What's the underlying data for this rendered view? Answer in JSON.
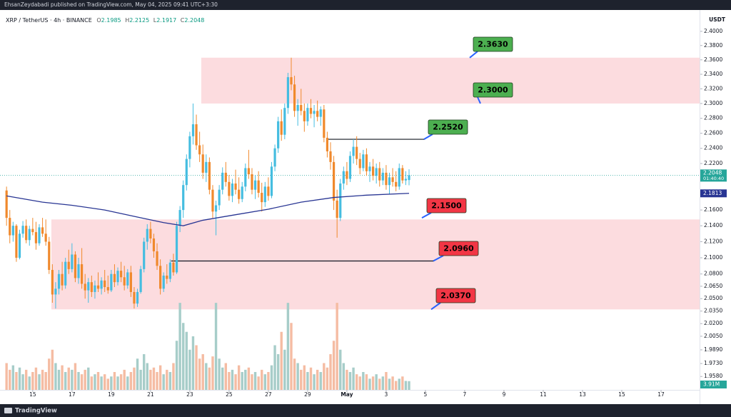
{
  "chart_data": {
    "type": "candlestick",
    "published": "EhsanZeydabadi published on TradingView.com, May 04, 2025 09:41 UTC+3:30",
    "symbol": "XRP / TetherUS · 4h · BINANCE",
    "ohlc_letters": [
      "O",
      "H",
      "L",
      "C"
    ],
    "currency": "USDT",
    "countdown": "01:40:40",
    "brand": "TradingView",
    "up_color": "#45bde0",
    "down_color": "#f0892c",
    "vol_up_color": "#a7cdc9",
    "vol_down_color": "#f5bca3",
    "ma_color": "#283593",
    "log_scale": true,
    "grid": false,
    "ylim": [
      1.9426,
      2.4304
    ],
    "yticks": [
      {
        "value": 2.4,
        "label": "2.4000"
      },
      {
        "value": 2.38,
        "label": "2.3800"
      },
      {
        "value": 2.36,
        "label": "2.3600"
      },
      {
        "value": 2.34,
        "label": "2.3400"
      },
      {
        "value": 2.32,
        "label": "2.3200"
      },
      {
        "value": 2.3,
        "label": "2.3000"
      },
      {
        "value": 2.28,
        "label": "2.2800"
      },
      {
        "value": 2.26,
        "label": "2.2600"
      },
      {
        "value": 2.24,
        "label": "2.2400"
      },
      {
        "value": 2.22,
        "label": "2.2200"
      },
      {
        "value": 2.16,
        "label": "2.1600"
      },
      {
        "value": 2.14,
        "label": "2.1400"
      },
      {
        "value": 2.12,
        "label": "2.1200"
      },
      {
        "value": 2.1,
        "label": "2.1000"
      },
      {
        "value": 2.08,
        "label": "2.0800"
      },
      {
        "value": 2.065,
        "label": "2.0650"
      },
      {
        "value": 2.05,
        "label": "2.0500"
      },
      {
        "value": 2.035,
        "label": "2.0350"
      },
      {
        "value": 2.02,
        "label": "2.0200"
      },
      {
        "value": 2.005,
        "label": "2.0050"
      },
      {
        "value": 1.989,
        "label": "1.9890"
      },
      {
        "value": 1.973,
        "label": "1.9730"
      },
      {
        "value": 1.958,
        "label": "1.9580"
      }
    ],
    "xlim": [
      -2,
      212
    ],
    "xticks": [
      {
        "value": 8,
        "label": "15"
      },
      {
        "value": 20,
        "label": "17"
      },
      {
        "value": 32,
        "label": "19"
      },
      {
        "value": 44,
        "label": "21"
      },
      {
        "value": 56,
        "label": "23"
      },
      {
        "value": 68,
        "label": "25"
      },
      {
        "value": 80,
        "label": "27"
      },
      {
        "value": 92,
        "label": "29"
      },
      {
        "value": 104,
        "label": "May"
      },
      {
        "value": 116,
        "label": "3"
      },
      {
        "value": 128,
        "label": "5"
      },
      {
        "value": 140,
        "label": "7"
      },
      {
        "value": 152,
        "label": "9"
      },
      {
        "value": 164,
        "label": "11"
      },
      {
        "value": 176,
        "label": "13"
      },
      {
        "value": 188,
        "label": "15"
      },
      {
        "value": 200,
        "label": "17"
      }
    ],
    "ohlc": [
      [
        2.185,
        2.19,
        2.14,
        2.15
      ],
      [
        2.15,
        2.16,
        2.118,
        2.128
      ],
      [
        2.128,
        2.145,
        2.12,
        2.14
      ],
      [
        2.14,
        2.142,
        2.095,
        2.1
      ],
      [
        2.1,
        2.135,
        2.098,
        2.13
      ],
      [
        2.13,
        2.146,
        2.125,
        2.14
      ],
      [
        2.14,
        2.148,
        2.118,
        2.122
      ],
      [
        2.122,
        2.14,
        2.115,
        2.136
      ],
      [
        2.136,
        2.15,
        2.128,
        2.132
      ],
      [
        2.132,
        2.145,
        2.11,
        2.118
      ],
      [
        2.118,
        2.142,
        2.115,
        2.138
      ],
      [
        2.138,
        2.15,
        2.126,
        2.13
      ],
      [
        2.13,
        2.148,
        2.115,
        2.12
      ],
      [
        2.12,
        2.126,
        2.08,
        2.085
      ],
      [
        2.085,
        2.092,
        2.045,
        2.055
      ],
      [
        2.055,
        2.07,
        2.038,
        2.062
      ],
      [
        2.062,
        2.085,
        2.055,
        2.08
      ],
      [
        2.08,
        2.095,
        2.06,
        2.066
      ],
      [
        2.066,
        2.1,
        2.062,
        2.095
      ],
      [
        2.095,
        2.11,
        2.08,
        2.086
      ],
      [
        2.086,
        2.118,
        2.082,
        2.104
      ],
      [
        2.104,
        2.108,
        2.07,
        2.075
      ],
      [
        2.075,
        2.1,
        2.068,
        2.092
      ],
      [
        2.092,
        2.112,
        2.062,
        2.068
      ],
      [
        2.068,
        2.08,
        2.05,
        2.06
      ],
      [
        2.06,
        2.075,
        2.045,
        2.07
      ],
      [
        2.07,
        2.078,
        2.052,
        2.058
      ],
      [
        2.058,
        2.072,
        2.05,
        2.066
      ],
      [
        2.066,
        2.082,
        2.058,
        2.062
      ],
      [
        2.062,
        2.076,
        2.055,
        2.072
      ],
      [
        2.072,
        2.085,
        2.058,
        2.064
      ],
      [
        2.064,
        2.078,
        2.056,
        2.06
      ],
      [
        2.06,
        2.085,
        2.058,
        2.08
      ],
      [
        2.08,
        2.092,
        2.064,
        2.07
      ],
      [
        2.07,
        2.088,
        2.066,
        2.084
      ],
      [
        2.084,
        2.095,
        2.07,
        2.076
      ],
      [
        2.076,
        2.09,
        2.06,
        2.066
      ],
      [
        2.066,
        2.086,
        2.062,
        2.082
      ],
      [
        2.082,
        2.09,
        2.052,
        2.058
      ],
      [
        2.058,
        2.064,
        2.038,
        2.044
      ],
      [
        2.044,
        2.062,
        2.04,
        2.058
      ],
      [
        2.058,
        2.09,
        2.056,
        2.086
      ],
      [
        2.086,
        2.125,
        2.082,
        2.12
      ],
      [
        2.12,
        2.142,
        2.11,
        2.136
      ],
      [
        2.136,
        2.145,
        2.118,
        2.124
      ],
      [
        2.124,
        2.13,
        2.1,
        2.108
      ],
      [
        2.108,
        2.118,
        2.085,
        2.09
      ],
      [
        2.09,
        2.098,
        2.055,
        2.062
      ],
      [
        2.062,
        2.082,
        2.058,
        2.078
      ],
      [
        2.078,
        2.092,
        2.068,
        2.074
      ],
      [
        2.074,
        2.098,
        2.07,
        2.094
      ],
      [
        2.094,
        2.105,
        2.078,
        2.082
      ],
      [
        2.082,
        2.145,
        2.08,
        2.14
      ],
      [
        2.14,
        2.165,
        2.132,
        2.16
      ],
      [
        2.16,
        2.198,
        2.15,
        2.192
      ],
      [
        2.192,
        2.232,
        2.185,
        2.226
      ],
      [
        2.226,
        2.262,
        2.215,
        2.256
      ],
      [
        2.256,
        2.3,
        2.245,
        2.272
      ],
      [
        2.272,
        2.285,
        2.238,
        2.244
      ],
      [
        2.244,
        2.262,
        2.222,
        2.232
      ],
      [
        2.232,
        2.245,
        2.2,
        2.208
      ],
      [
        2.208,
        2.232,
        2.196,
        2.222
      ],
      [
        2.222,
        2.228,
        2.18,
        2.186
      ],
      [
        2.186,
        2.192,
        2.15,
        2.158
      ],
      [
        2.158,
        2.172,
        2.128,
        2.166
      ],
      [
        2.166,
        2.192,
        2.16,
        2.186
      ],
      [
        2.186,
        2.215,
        2.18,
        2.208
      ],
      [
        2.208,
        2.222,
        2.19,
        2.196
      ],
      [
        2.196,
        2.205,
        2.172,
        2.178
      ],
      [
        2.178,
        2.2,
        2.17,
        2.194
      ],
      [
        2.194,
        2.212,
        2.18,
        2.186
      ],
      [
        2.186,
        2.202,
        2.168,
        2.174
      ],
      [
        2.174,
        2.196,
        2.17,
        2.19
      ],
      [
        2.19,
        2.22,
        2.184,
        2.214
      ],
      [
        2.214,
        2.238,
        2.2,
        2.206
      ],
      [
        2.206,
        2.214,
        2.18,
        2.186
      ],
      [
        2.186,
        2.205,
        2.174,
        2.198
      ],
      [
        2.198,
        2.21,
        2.176,
        2.182
      ],
      [
        2.182,
        2.195,
        2.158,
        2.17
      ],
      [
        2.17,
        2.196,
        2.164,
        2.19
      ],
      [
        2.19,
        2.202,
        2.172,
        2.178
      ],
      [
        2.178,
        2.222,
        2.175,
        2.216
      ],
      [
        2.216,
        2.245,
        2.21,
        2.24
      ],
      [
        2.24,
        2.282,
        2.234,
        2.276
      ],
      [
        2.276,
        2.292,
        2.25,
        2.258
      ],
      [
        2.258,
        2.3,
        2.252,
        2.294
      ],
      [
        2.294,
        2.342,
        2.286,
        2.336
      ],
      [
        2.336,
        2.363,
        2.318,
        2.326
      ],
      [
        2.326,
        2.338,
        2.282,
        2.29
      ],
      [
        2.29,
        2.306,
        2.27,
        2.298
      ],
      [
        2.298,
        2.32,
        2.284,
        2.29
      ],
      [
        2.29,
        2.3,
        2.262,
        2.276
      ],
      [
        2.276,
        2.3,
        2.27,
        2.294
      ],
      [
        2.294,
        2.306,
        2.28,
        2.286
      ],
      [
        2.286,
        2.298,
        2.268,
        2.29
      ],
      [
        2.29,
        2.304,
        2.276,
        2.282
      ],
      [
        2.282,
        2.296,
        2.27,
        2.292
      ],
      [
        2.292,
        2.298,
        2.248,
        2.254
      ],
      [
        2.254,
        2.262,
        2.228,
        2.236
      ],
      [
        2.236,
        2.248,
        2.212,
        2.222
      ],
      [
        2.222,
        2.23,
        2.16,
        2.172
      ],
      [
        2.172,
        2.186,
        2.125,
        2.15
      ],
      [
        2.15,
        2.2,
        2.146,
        2.194
      ],
      [
        2.194,
        2.216,
        2.186,
        2.21
      ],
      [
        2.21,
        2.222,
        2.192,
        2.2
      ],
      [
        2.2,
        2.236,
        2.196,
        2.23
      ],
      [
        2.23,
        2.252,
        2.22,
        2.242
      ],
      [
        2.242,
        2.256,
        2.218,
        2.226
      ],
      [
        2.226,
        2.234,
        2.206,
        2.214
      ],
      [
        2.214,
        2.238,
        2.21,
        2.232
      ],
      [
        2.232,
        2.24,
        2.204,
        2.21
      ],
      [
        2.21,
        2.222,
        2.196,
        2.216
      ],
      [
        2.216,
        2.226,
        2.198,
        2.204
      ],
      [
        2.204,
        2.22,
        2.194,
        2.214
      ],
      [
        2.214,
        2.222,
        2.19,
        2.198
      ],
      [
        2.198,
        2.214,
        2.192,
        2.208
      ],
      [
        2.208,
        2.218,
        2.186,
        2.192
      ],
      [
        2.192,
        2.208,
        2.18,
        2.202
      ],
      [
        2.202,
        2.214,
        2.19,
        2.196
      ],
      [
        2.196,
        2.21,
        2.184,
        2.19
      ],
      [
        2.19,
        2.22,
        2.186,
        2.214
      ],
      [
        2.214,
        2.218,
        2.194,
        2.198
      ],
      [
        2.198,
        2.21,
        2.192,
        2.2
      ],
      [
        2.1985,
        2.2125,
        2.1917,
        2.2048
      ]
    ],
    "volume": {
      "vlim": [
        0,
        48
      ],
      "last_label": "3.91M",
      "values": [
        12,
        9,
        11,
        8,
        10,
        7,
        9,
        6,
        8,
        10,
        7,
        9,
        8,
        14,
        18,
        12,
        9,
        11,
        8,
        10,
        9,
        12,
        8,
        7,
        9,
        10,
        6,
        7,
        8,
        6,
        7,
        5,
        6,
        8,
        6,
        7,
        9,
        6,
        8,
        10,
        14,
        9,
        16,
        12,
        9,
        10,
        8,
        11,
        7,
        9,
        8,
        12,
        22,
        39,
        30,
        26,
        18,
        24,
        20,
        14,
        16,
        12,
        10,
        15,
        39,
        14,
        10,
        12,
        8,
        9,
        7,
        11,
        8,
        9,
        10,
        7,
        8,
        6,
        9,
        7,
        8,
        11,
        20,
        16,
        26,
        18,
        39,
        30,
        14,
        12,
        9,
        11,
        8,
        10,
        7,
        9,
        8,
        12,
        10,
        16,
        22,
        39,
        18,
        12,
        9,
        8,
        10,
        7,
        6,
        8,
        7,
        5,
        6,
        7,
        5,
        6,
        8,
        5,
        6,
        4,
        5,
        6,
        4,
        3.91
      ]
    },
    "ma": {
      "x": [
        0,
        11,
        20,
        30,
        40,
        48,
        54,
        60,
        70,
        80,
        90,
        100,
        110,
        123
      ],
      "values": [
        2.178,
        2.17,
        2.166,
        2.16,
        2.151,
        2.144,
        2.14,
        2.147,
        2.154,
        2.161,
        2.17,
        2.176,
        2.179,
        2.1813
      ]
    },
    "zones": [
      {
        "from": 59.5,
        "low": 2.3,
        "high": 2.363
      },
      {
        "from": 13.7,
        "low": 2.037,
        "high": 2.148
      }
    ],
    "lines": [
      {
        "value": 2.252,
        "from": 98.3,
        "to": 127.8
      },
      {
        "value": 2.096,
        "from": 50.3,
        "to": 130.6
      }
    ],
    "levels": [
      {
        "label": "2.3630",
        "value": 2.363,
        "color": "#4caf50"
      },
      {
        "label": "2.3000",
        "value": 2.3,
        "color": "#4caf50"
      },
      {
        "label": "2.2520",
        "value": 2.252,
        "color": "#4caf50"
      },
      {
        "label": "2.1500",
        "value": 2.15,
        "color": "#f23645"
      },
      {
        "label": "2.0960",
        "value": 2.096,
        "color": "#f23645"
      },
      {
        "label": "2.0370",
        "value": 2.037,
        "color": "#f23645"
      }
    ]
  }
}
